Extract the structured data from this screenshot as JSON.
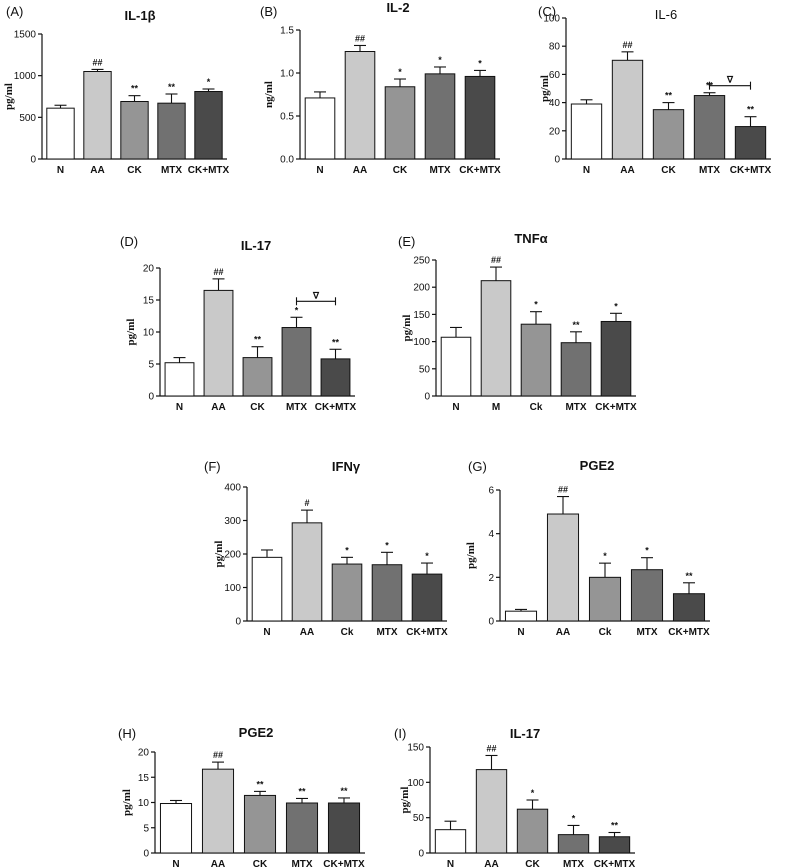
{
  "colors": {
    "N": "#ffffff",
    "AA": "#c9c9c9",
    "CK": "#959595",
    "MTX": "#717171",
    "CK+MTX": "#4a4a4a"
  },
  "chart_data": [
    {
      "panel": "(A)",
      "type": "bar",
      "title": "IL-1β",
      "ylabel": "pg/ml",
      "ylim": [
        0,
        1500
      ],
      "yticks": [
        0,
        500,
        1000,
        1500
      ],
      "categories": [
        "N",
        "AA",
        "CK",
        "MTX",
        "CK+MTX"
      ],
      "values": [
        610,
        1050,
        690,
        670,
        810
      ],
      "errors": [
        35,
        25,
        70,
        110,
        30
      ],
      "significance": [
        "",
        "##",
        "**",
        "**",
        "*"
      ],
      "bracket": null
    },
    {
      "panel": "(B)",
      "type": "bar",
      "title": "IL-2",
      "ylabel": "ng/ml",
      "ylim": [
        0,
        1.5
      ],
      "yticks": [
        "0.0",
        "0.5",
        "1.0",
        "1.5"
      ],
      "categories": [
        "N",
        "AA",
        "CK",
        "MTX",
        "CK+MTX"
      ],
      "values": [
        0.71,
        1.25,
        0.84,
        0.99,
        0.96
      ],
      "errors": [
        0.07,
        0.07,
        0.09,
        0.08,
        0.07
      ],
      "significance": [
        "",
        "##",
        "*",
        "*",
        "*"
      ],
      "bracket": null
    },
    {
      "panel": "(C)",
      "type": "bar",
      "title": "IL-6",
      "title_bold": false,
      "ylabel": "pg/ml",
      "ylim": [
        0,
        100
      ],
      "yticks": [
        0,
        20,
        40,
        60,
        80,
        100
      ],
      "categories": [
        "N",
        "AA",
        "CK",
        "MTX",
        "CK+MTX"
      ],
      "values": [
        39,
        70,
        35,
        45,
        23
      ],
      "errors": [
        3,
        6,
        5,
        2,
        7
      ],
      "significance": [
        "",
        "##",
        "**",
        "**",
        "**"
      ],
      "bracket": {
        "from": 3,
        "to": 4,
        "value": 52,
        "label": "∇"
      }
    },
    {
      "panel": "(D)",
      "type": "bar",
      "title": "IL-17",
      "ylabel": "pg/ml",
      "ylim": [
        0,
        20
      ],
      "yticks": [
        0,
        5,
        10,
        15,
        20
      ],
      "categories": [
        "N",
        "AA",
        "CK",
        "MTX",
        "CK+MTX"
      ],
      "values": [
        5.2,
        16.5,
        6.0,
        10.7,
        5.8
      ],
      "errors": [
        0.8,
        1.8,
        1.7,
        1.6,
        1.5
      ],
      "significance": [
        "",
        "##",
        "**",
        "*",
        "**"
      ],
      "bracket": {
        "from": 3,
        "to": 4,
        "value": 14.8,
        "label": "∇"
      }
    },
    {
      "panel": "(E)",
      "type": "bar",
      "title": "TNFα",
      "ylabel": "pg/ml",
      "ylim": [
        0,
        250
      ],
      "yticks": [
        0,
        50,
        100,
        150,
        200,
        250
      ],
      "categories": [
        "N",
        "M",
        "Ck",
        "MTX",
        "CK+MTX"
      ],
      "values": [
        108,
        212,
        132,
        98,
        137
      ],
      "errors": [
        18,
        25,
        23,
        20,
        15
      ],
      "significance": [
        "",
        "##",
        "*",
        "**",
        "*"
      ],
      "bracket": null
    },
    {
      "panel": "(F)",
      "type": "bar",
      "title": "IFNγ",
      "ylabel": "pg/ml",
      "ylim": [
        0,
        400
      ],
      "yticks": [
        0,
        100,
        200,
        300,
        400
      ],
      "categories": [
        "N",
        "AA",
        "Ck",
        "MTX",
        "CK+MTX"
      ],
      "values": [
        190,
        293,
        170,
        168,
        140
      ],
      "errors": [
        22,
        38,
        20,
        37,
        33
      ],
      "significance": [
        "",
        "#",
        "*",
        "*",
        "*"
      ],
      "bracket": null
    },
    {
      "panel": "(G)",
      "type": "bar",
      "title": "PGE2",
      "ylabel": "pg/ml",
      "ylim": [
        0,
        6
      ],
      "yticks": [
        0,
        2,
        4,
        6
      ],
      "categories": [
        "N",
        "AA",
        "Ck",
        "MTX",
        "CK+MTX"
      ],
      "values": [
        0.45,
        4.9,
        2.0,
        2.35,
        1.25
      ],
      "errors": [
        0.08,
        0.8,
        0.65,
        0.55,
        0.5
      ],
      "significance": [
        "",
        "##",
        "*",
        "*",
        "**"
      ],
      "bracket": null
    },
    {
      "panel": "(H)",
      "type": "bar",
      "title": "PGE2",
      "ylabel": "pg/ml",
      "ylim": [
        0,
        20
      ],
      "yticks": [
        0,
        5,
        10,
        15,
        20
      ],
      "categories": [
        "N",
        "AA",
        "CK",
        "MTX",
        "CK+MTX"
      ],
      "values": [
        9.8,
        16.6,
        11.4,
        9.9,
        9.9
      ],
      "errors": [
        0.6,
        1.4,
        0.8,
        0.9,
        1.0
      ],
      "significance": [
        "",
        "##",
        "**",
        "**",
        "**"
      ],
      "bracket": null
    },
    {
      "panel": "(I)",
      "type": "bar",
      "title": "IL-17",
      "ylabel": "pg/ml",
      "ylim": [
        0,
        150
      ],
      "yticks": [
        0,
        50,
        100,
        150
      ],
      "categories": [
        "N",
        "AA",
        "CK",
        "MTX",
        "CK+MTX"
      ],
      "values": [
        33,
        118,
        62,
        26,
        23
      ],
      "errors": [
        12,
        20,
        13,
        13,
        6
      ],
      "significance": [
        "",
        "##",
        "*",
        "*",
        "**"
      ],
      "bracket": null
    }
  ]
}
